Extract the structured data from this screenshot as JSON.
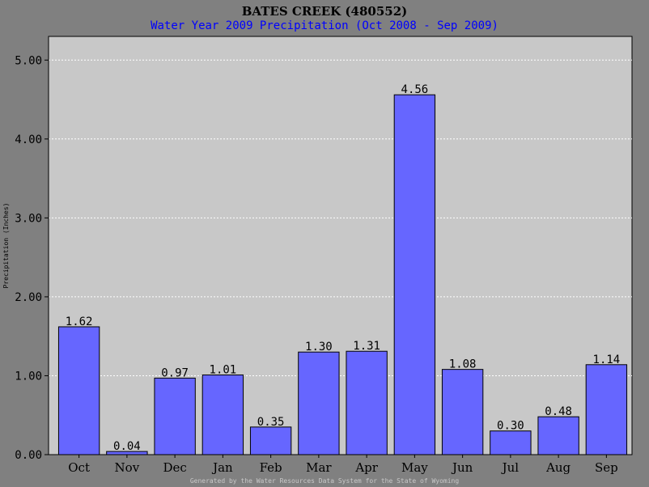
{
  "chart_data": {
    "type": "bar",
    "title": "BATES CREEK (480552)",
    "subtitle": "Water Year 2009 Precipitation (Oct 2008 - Sep 2009)",
    "xlabel": "",
    "ylabel": "Precipitation (Inches)",
    "ylim": [
      0,
      5.3
    ],
    "yticks": [
      "0.00",
      "1.00",
      "2.00",
      "3.00",
      "4.00",
      "5.00"
    ],
    "ytick_values": [
      0,
      1,
      2,
      3,
      4,
      5
    ],
    "grid": true,
    "categories": [
      "Oct",
      "Nov",
      "Dec",
      "Jan",
      "Feb",
      "Mar",
      "Apr",
      "May",
      "Jun",
      "Jul",
      "Aug",
      "Sep"
    ],
    "values": [
      1.62,
      0.04,
      0.97,
      1.01,
      0.35,
      1.3,
      1.31,
      4.56,
      1.08,
      0.3,
      0.48,
      1.14
    ],
    "value_labels": [
      "1.62",
      "0.04",
      "0.97",
      "1.01",
      "0.35",
      "1.30",
      "1.31",
      "4.56",
      "1.08",
      "0.30",
      "0.48",
      "1.14"
    ],
    "colors": {
      "bar": "#6666ff",
      "plot_bg": "#c8c8c8",
      "page_bg": "#808080",
      "grid": "#ffffff",
      "subtitle": "#0000ff"
    }
  },
  "footer": "Generated by the Water Resources Data System for the State of Wyoming"
}
